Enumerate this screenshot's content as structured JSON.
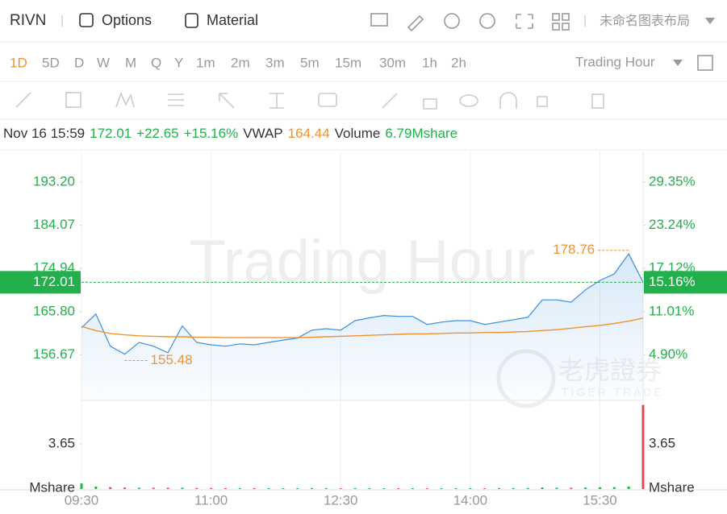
{
  "toolbar": {
    "symbol": "RIVN",
    "options": "Options",
    "material": "Material",
    "layout": "未命名图表布局"
  },
  "intervals": [
    "1D",
    "5D",
    "D",
    "W",
    "M",
    "Q",
    "Y",
    "1m",
    "2m",
    "3m",
    "5m",
    "15m",
    "30m",
    "1h",
    "2h"
  ],
  "active_interval": "1D",
  "session": "Trading Hour",
  "info": {
    "time": "Nov 16 15:59",
    "price": "172.01",
    "change": "+22.65",
    "change_pct": "+15.16%",
    "vwap_label": "VWAP",
    "vwap": "164.44",
    "volume_label": "Volume",
    "volume": "6.79Mshare"
  },
  "chart_data": {
    "type": "line",
    "watermark": "Trading Hour",
    "logo": "老虎證券",
    "logo_sub": "TIGER TRADE",
    "categories": [
      "09:30",
      "09:40",
      "09:50",
      "10:00",
      "10:10",
      "10:20",
      "10:30",
      "10:40",
      "10:50",
      "11:00",
      "11:10",
      "11:20",
      "11:30",
      "11:40",
      "11:50",
      "12:00",
      "12:10",
      "12:20",
      "12:30",
      "12:40",
      "12:50",
      "13:00",
      "13:10",
      "13:20",
      "13:30",
      "13:40",
      "13:50",
      "14:00",
      "14:10",
      "14:20",
      "14:30",
      "14:40",
      "14:50",
      "15:00",
      "15:10",
      "15:20",
      "15:30",
      "15:40",
      "15:50",
      "16:00"
    ],
    "xticks": [
      "09:30",
      "11:00",
      "12:30",
      "14:00",
      "15:30"
    ],
    "series": [
      {
        "color": "#3b8ede",
        "values": [
          162.4,
          165.3,
          158.5,
          156.8,
          159.3,
          158.5,
          157.1,
          162.8,
          159.3,
          158.8,
          158.5,
          159.0,
          158.8,
          159.3,
          159.8,
          160.2,
          161.9,
          162.2,
          161.9,
          163.9,
          164.5,
          165.0,
          164.8,
          164.8,
          163.1,
          163.6,
          163.9,
          163.9,
          163.1,
          163.6,
          164.1,
          164.6,
          168.3,
          168.3,
          167.8,
          170.4,
          172.4,
          173.8,
          178.0,
          172.01
        ]
      },
      {
        "color": "#f0922f",
        "values": [
          162.7,
          161.8,
          161.2,
          160.9,
          160.7,
          160.6,
          160.5,
          160.5,
          160.4,
          160.4,
          160.3,
          160.3,
          160.3,
          160.3,
          160.3,
          160.3,
          160.4,
          160.5,
          160.6,
          160.7,
          160.8,
          160.9,
          161.0,
          161.1,
          161.1,
          161.2,
          161.3,
          161.3,
          161.4,
          161.4,
          161.5,
          161.6,
          161.8,
          162.0,
          162.3,
          162.6,
          162.9,
          163.3,
          163.8,
          164.44
        ]
      }
    ],
    "annotations": [
      {
        "value": 178.76,
        "label": "178.76"
      },
      {
        "value": 155.48,
        "label": "155.48"
      }
    ],
    "current": {
      "value": 172.01,
      "label": "172.01",
      "pct_label": "15.16%"
    },
    "ylim": [
      147.38,
      199.67
    ],
    "yticks": [
      {
        "value": 193.2,
        "label": "193.20"
      },
      184.07,
      174.94,
      {
        "value": 165.8,
        "label": "165.80"
      },
      156.67
    ],
    "y2lim": [
      -1.33,
      33.68
    ],
    "y2ticks": [
      {
        "value": 29.35,
        "label": "29.35%"
      },
      {
        "value": 23.24,
        "label": "23.24%"
      },
      {
        "value": 17.12,
        "label": "17.12%"
      },
      {
        "value": 11.01,
        "label": "11.01%"
      },
      {
        "value": 4.9,
        "label": "4.90%"
      }
    ],
    "volume": {
      "values": [
        0.45,
        0.2,
        0.15,
        0.12,
        0.1,
        0.1,
        0.1,
        0.1,
        0.08,
        0.08,
        0.07,
        0.07,
        0.07,
        0.06,
        0.06,
        0.06,
        0.07,
        0.07,
        0.06,
        0.07,
        0.07,
        0.06,
        0.06,
        0.06,
        0.06,
        0.06,
        0.06,
        0.07,
        0.06,
        0.07,
        0.07,
        0.08,
        0.12,
        0.1,
        0.1,
        0.12,
        0.14,
        0.15,
        0.2,
        6.8
      ],
      "ylim": [
        0,
        6.97
      ],
      "yticks": [
        {
          "value": 0,
          "label": "Mshare"
        },
        3.65
      ]
    }
  }
}
